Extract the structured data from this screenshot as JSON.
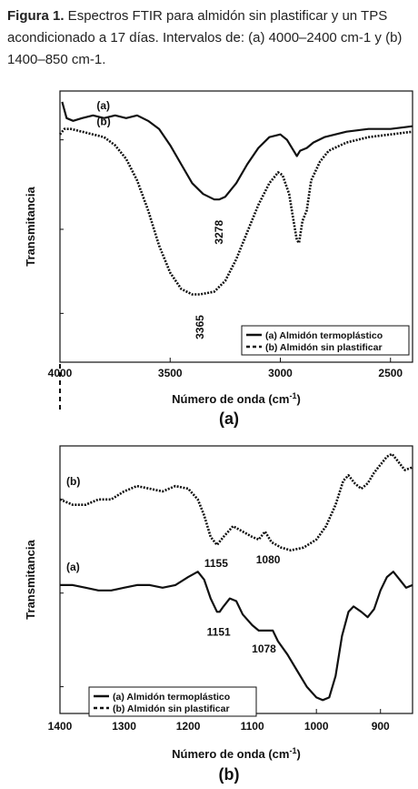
{
  "caption": {
    "label": "Figura 1.",
    "text": " Espectros FTIR para almidón sin plastificar y un TPS acondicionado a 17 días. Intervalos de: (a) 4000–2400 cm-1 y (b) 1400–850 cm-1."
  },
  "chart_data": [
    {
      "panel_label": "(a)",
      "type": "line",
      "xlabel": "Número de onda (cm",
      "xlabel_sup": "-1",
      "xlabel_close": ")",
      "ylabel": "Transmitancia",
      "xlim": [
        4000,
        2400
      ],
      "x_ticks": [
        "4000",
        "3500",
        "3000",
        "2500"
      ],
      "x_tick_values": [
        4000,
        3500,
        3000,
        2500
      ],
      "ylim": [
        0,
        1
      ],
      "legend_position": "bottom-right",
      "series": [
        {
          "name": "(a) Almidón termoplástico",
          "label": "(a)",
          "style": "solid",
          "color": "#111111",
          "points": [
            [
              3990,
              0.96
            ],
            [
              3970,
              0.9
            ],
            [
              3940,
              0.89
            ],
            [
              3900,
              0.9
            ],
            [
              3850,
              0.91
            ],
            [
              3800,
              0.9
            ],
            [
              3750,
              0.91
            ],
            [
              3700,
              0.9
            ],
            [
              3650,
              0.91
            ],
            [
              3600,
              0.89
            ],
            [
              3550,
              0.86
            ],
            [
              3500,
              0.8
            ],
            [
              3450,
              0.73
            ],
            [
              3400,
              0.66
            ],
            [
              3350,
              0.62
            ],
            [
              3300,
              0.6
            ],
            [
              3278,
              0.6
            ],
            [
              3250,
              0.61
            ],
            [
              3200,
              0.66
            ],
            [
              3150,
              0.73
            ],
            [
              3100,
              0.79
            ],
            [
              3050,
              0.83
            ],
            [
              3000,
              0.84
            ],
            [
              2970,
              0.82
            ],
            [
              2940,
              0.78
            ],
            [
              2925,
              0.76
            ],
            [
              2910,
              0.78
            ],
            [
              2880,
              0.79
            ],
            [
              2850,
              0.81
            ],
            [
              2800,
              0.83
            ],
            [
              2750,
              0.84
            ],
            [
              2700,
              0.85
            ],
            [
              2600,
              0.86
            ],
            [
              2500,
              0.86
            ],
            [
              2400,
              0.87
            ]
          ]
        },
        {
          "name": "(b) Almidón sin plastificar",
          "label": "(b)",
          "style": "dashed",
          "color": "#111111",
          "points": [
            [
              4000,
              0.84
            ],
            [
              3980,
              0.86
            ],
            [
              3950,
              0.86
            ],
            [
              3900,
              0.85
            ],
            [
              3850,
              0.84
            ],
            [
              3800,
              0.83
            ],
            [
              3750,
              0.8
            ],
            [
              3700,
              0.75
            ],
            [
              3650,
              0.67
            ],
            [
              3600,
              0.56
            ],
            [
              3550,
              0.43
            ],
            [
              3500,
              0.33
            ],
            [
              3450,
              0.27
            ],
            [
              3400,
              0.25
            ],
            [
              3365,
              0.25
            ],
            [
              3300,
              0.26
            ],
            [
              3250,
              0.3
            ],
            [
              3200,
              0.38
            ],
            [
              3150,
              0.48
            ],
            [
              3100,
              0.58
            ],
            [
              3050,
              0.66
            ],
            [
              3010,
              0.7
            ],
            [
              2990,
              0.69
            ],
            [
              2960,
              0.62
            ],
            [
              2940,
              0.52
            ],
            [
              2925,
              0.45
            ],
            [
              2915,
              0.44
            ],
            [
              2900,
              0.52
            ],
            [
              2880,
              0.56
            ],
            [
              2860,
              0.67
            ],
            [
              2820,
              0.74
            ],
            [
              2780,
              0.78
            ],
            [
              2700,
              0.81
            ],
            [
              2600,
              0.83
            ],
            [
              2500,
              0.84
            ],
            [
              2400,
              0.85
            ]
          ]
        }
      ],
      "annotations": [
        {
          "text": "3278",
          "x": 3278
        },
        {
          "text": "3365",
          "x": 3365
        }
      ],
      "footer_label": "(a)"
    },
    {
      "panel_label": "(b)",
      "type": "line",
      "xlabel": "Número de onda (cm",
      "xlabel_sup": "-1",
      "xlabel_close": ")",
      "ylabel": "Transmitancia",
      "xlim": [
        1400,
        850
      ],
      "x_ticks": [
        "1400",
        "1300",
        "1200",
        "1100",
        "1000",
        "900"
      ],
      "x_tick_values": [
        1400,
        1300,
        1200,
        1100,
        1000,
        900
      ],
      "ylim": [
        0,
        1
      ],
      "legend_position": "bottom-left",
      "series": [
        {
          "name": "(a) Almidón termoplástico",
          "label": "(a)",
          "style": "solid",
          "color": "#111111",
          "points": [
            [
              1400,
              0.48
            ],
            [
              1380,
              0.48
            ],
            [
              1360,
              0.47
            ],
            [
              1340,
              0.46
            ],
            [
              1320,
              0.46
            ],
            [
              1300,
              0.47
            ],
            [
              1280,
              0.48
            ],
            [
              1260,
              0.48
            ],
            [
              1240,
              0.47
            ],
            [
              1220,
              0.48
            ],
            [
              1200,
              0.51
            ],
            [
              1185,
              0.53
            ],
            [
              1175,
              0.5
            ],
            [
              1165,
              0.43
            ],
            [
              1155,
              0.38
            ],
            [
              1151,
              0.38
            ],
            [
              1145,
              0.4
            ],
            [
              1135,
              0.43
            ],
            [
              1125,
              0.42
            ],
            [
              1115,
              0.37
            ],
            [
              1100,
              0.33
            ],
            [
              1090,
              0.31
            ],
            [
              1078,
              0.31
            ],
            [
              1068,
              0.31
            ],
            [
              1060,
              0.27
            ],
            [
              1045,
              0.22
            ],
            [
              1030,
              0.16
            ],
            [
              1015,
              0.1
            ],
            [
              1000,
              0.06
            ],
            [
              990,
              0.05
            ],
            [
              980,
              0.06
            ],
            [
              970,
              0.14
            ],
            [
              960,
              0.29
            ],
            [
              950,
              0.38
            ],
            [
              942,
              0.4
            ],
            [
              930,
              0.38
            ],
            [
              920,
              0.36
            ],
            [
              910,
              0.39
            ],
            [
              900,
              0.46
            ],
            [
              890,
              0.51
            ],
            [
              880,
              0.53
            ],
            [
              870,
              0.5
            ],
            [
              860,
              0.47
            ],
            [
              850,
              0.48
            ]
          ]
        },
        {
          "name": "(b) Almidón sin plastificar",
          "label": "(b)",
          "style": "dashed",
          "color": "#111111",
          "points": [
            [
              1400,
              0.8
            ],
            [
              1380,
              0.78
            ],
            [
              1360,
              0.78
            ],
            [
              1340,
              0.8
            ],
            [
              1320,
              0.8
            ],
            [
              1300,
              0.83
            ],
            [
              1280,
              0.85
            ],
            [
              1260,
              0.84
            ],
            [
              1240,
              0.83
            ],
            [
              1220,
              0.85
            ],
            [
              1200,
              0.84
            ],
            [
              1185,
              0.8
            ],
            [
              1175,
              0.74
            ],
            [
              1165,
              0.66
            ],
            [
              1155,
              0.63
            ],
            [
              1145,
              0.66
            ],
            [
              1130,
              0.7
            ],
            [
              1115,
              0.68
            ],
            [
              1100,
              0.66
            ],
            [
              1090,
              0.65
            ],
            [
              1080,
              0.68
            ],
            [
              1070,
              0.64
            ],
            [
              1055,
              0.62
            ],
            [
              1040,
              0.61
            ],
            [
              1020,
              0.62
            ],
            [
              1000,
              0.65
            ],
            [
              985,
              0.7
            ],
            [
              970,
              0.78
            ],
            [
              958,
              0.87
            ],
            [
              950,
              0.89
            ],
            [
              940,
              0.86
            ],
            [
              930,
              0.84
            ],
            [
              920,
              0.86
            ],
            [
              910,
              0.9
            ],
            [
              900,
              0.93
            ],
            [
              890,
              0.96
            ],
            [
              882,
              0.97
            ],
            [
              872,
              0.94
            ],
            [
              862,
              0.91
            ],
            [
              850,
              0.92
            ]
          ]
        }
      ],
      "annotations": [
        {
          "text": "1155",
          "x": 1155
        },
        {
          "text": "1080",
          "x": 1080
        },
        {
          "text": "1151",
          "x": 1151
        },
        {
          "text": "1078",
          "x": 1078
        }
      ],
      "footer_label": "(b)"
    }
  ]
}
